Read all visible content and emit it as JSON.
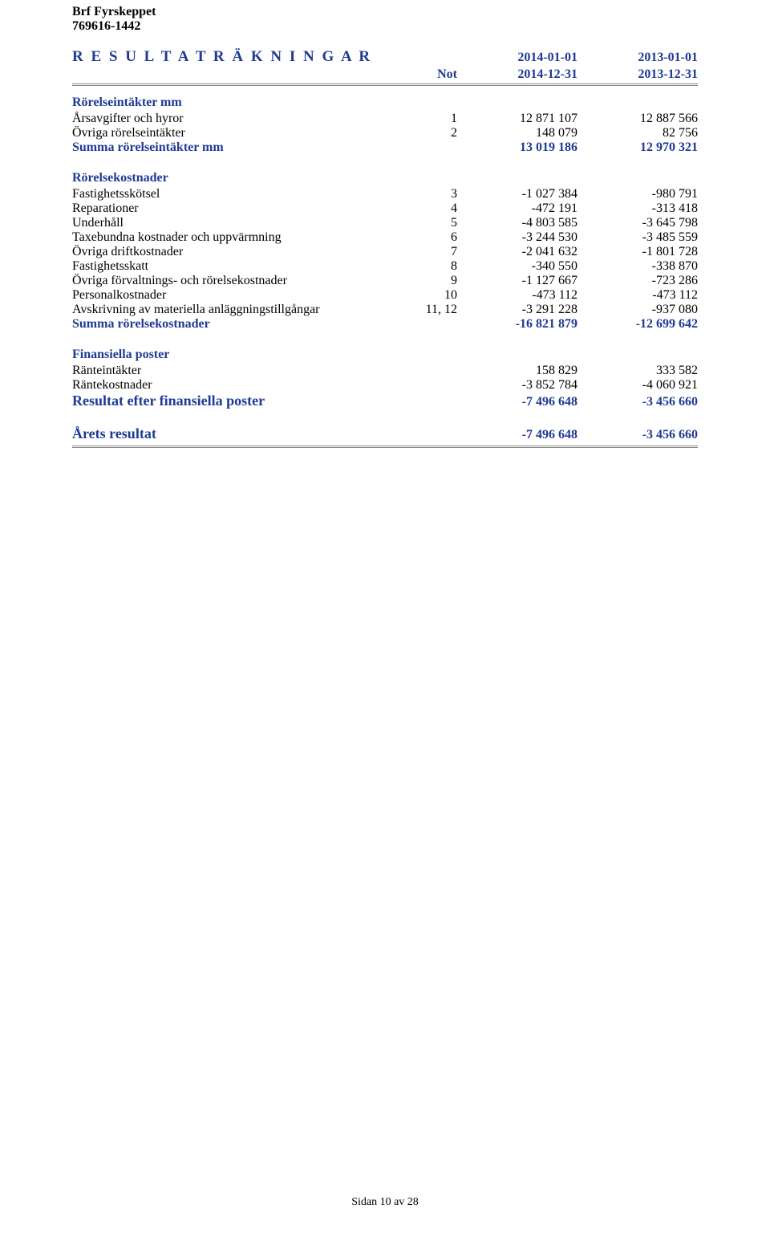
{
  "header": {
    "org_name": "Brf Fyrskeppet",
    "org_number": "769616-1442"
  },
  "title": "R E S U L T A T R Ä K N I N G A R",
  "col_headers": {
    "not": "Not",
    "period1_start": "2014-01-01",
    "period2_start": "2013-01-01",
    "period1_end": "2014-12-31",
    "period2_end": "2013-12-31"
  },
  "sections": {
    "intakter": {
      "heading": "Rörelseintäkter mm",
      "rows": [
        {
          "label": "Årsavgifter och hyror",
          "note": "1",
          "v1": "12 871 107",
          "v2": "12 887 566"
        },
        {
          "label": "Övriga rörelseintäkter",
          "note": "2",
          "v1": "148 079",
          "v2": "82 756"
        }
      ],
      "sum": {
        "label": "Summa rörelseintäkter mm",
        "v1": "13 019 186",
        "v2": "12 970 321"
      }
    },
    "kostnader": {
      "heading": "Rörelsekostnader",
      "rows": [
        {
          "label": "Fastighetsskötsel",
          "note": "3",
          "v1": "-1 027 384",
          "v2": "-980 791"
        },
        {
          "label": "Reparationer",
          "note": "4",
          "v1": "-472 191",
          "v2": "-313 418"
        },
        {
          "label": "Underhåll",
          "note": "5",
          "v1": "-4 803 585",
          "v2": "-3 645 798"
        },
        {
          "label": "Taxebundna kostnader och uppvärmning",
          "note": "6",
          "v1": "-3 244 530",
          "v2": "-3 485 559"
        },
        {
          "label": "Övriga driftkostnader",
          "note": "7",
          "v1": "-2 041 632",
          "v2": "-1 801 728"
        },
        {
          "label": "Fastighetsskatt",
          "note": "8",
          "v1": "-340 550",
          "v2": "-338 870"
        },
        {
          "label": "Övriga förvaltnings- och rörelsekostnader",
          "note": "9",
          "v1": "-1 127 667",
          "v2": "-723 286"
        },
        {
          "label": "Personalkostnader",
          "note": "10",
          "v1": "-473 112",
          "v2": "-473 112"
        },
        {
          "label": "Avskrivning av materiella anläggningstillgångar",
          "note": "11, 12",
          "v1": "-3 291 228",
          "v2": "-937 080"
        }
      ],
      "sum": {
        "label": "Summa rörelsekostnader",
        "v1": "-16 821 879",
        "v2": "-12 699 642"
      }
    },
    "finans": {
      "heading": "Finansiella poster",
      "rows": [
        {
          "label": "Ränteintäkter",
          "note": "",
          "v1": "158 829",
          "v2": "333 582"
        },
        {
          "label": "Räntekostnader",
          "note": "",
          "v1": "-3 852 784",
          "v2": "-4 060 921"
        }
      ],
      "sum": {
        "label": "Resultat efter finansiella poster",
        "v1": "-7 496 648",
        "v2": "-3 456 660"
      }
    },
    "arsresultat": {
      "label": "Årets resultat",
      "v1": "-7 496 648",
      "v2": "-3 456 660"
    }
  },
  "footer": "Sidan 10 av 28",
  "colors": {
    "heading": "#1f3a93",
    "text": "#000000",
    "rule": "#888888"
  }
}
